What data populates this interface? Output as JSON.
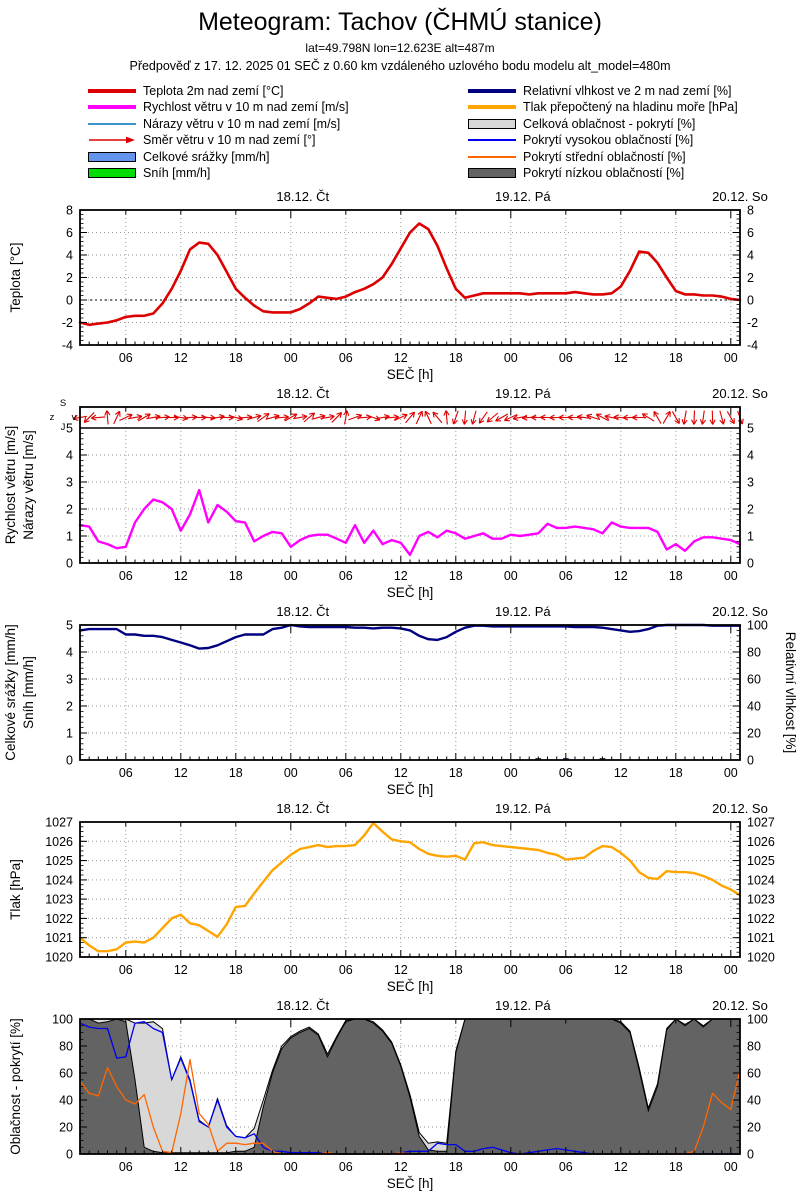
{
  "header": {
    "title": "Meteogram: Tachov (ČHMÚ stanice)",
    "coords": "lat=49.798N lon=12.623E alt=487m",
    "forecast_info": "Předpověď z 17. 12. 2025 01 SEČ z 0.60 km vzdáleného uzlového bodu modelu alt_model=480m"
  },
  "legend": {
    "left": [
      {
        "swatch": "line-thick",
        "color": "#dd0000",
        "label": "Teplota 2m nad zemí [°C]"
      },
      {
        "swatch": "line-thick",
        "color": "#ff00ff",
        "label": "Rychlost větru v 10 m nad zemí [m/s]"
      },
      {
        "swatch": "line-thin",
        "color": "#3d95cc",
        "label": "Nárazy větru v 10 m nad zemí [m/s]"
      },
      {
        "swatch": "arrow",
        "color": "#dd0000",
        "label": "Směr větru v 10 m nad zemí [°]"
      },
      {
        "swatch": "box",
        "color": "#6495ed",
        "label": "Celkové srážky [mm/h]"
      },
      {
        "swatch": "box",
        "color": "#00dc00",
        "label": "Sníh [mm/h]"
      }
    ],
    "right": [
      {
        "swatch": "line-thick",
        "color": "#000080",
        "label": "Relativní vlhkost ve 2 m nad zemí [%]"
      },
      {
        "swatch": "line-thick",
        "color": "#ffa500",
        "label": "Tlak přepočtený na hladinu moře [hPa]"
      },
      {
        "swatch": "box",
        "color": "#d8d8d8",
        "label": "Celková oblačnost - pokrytí [%]"
      },
      {
        "swatch": "line-thin",
        "color": "#0000ee",
        "label": "Pokrytí vysokou oblačností [%]"
      },
      {
        "swatch": "line-thin",
        "color": "#ff6600",
        "label": "Pokrytí střední oblačností [%]"
      },
      {
        "swatch": "box",
        "color": "#636363",
        "label": "Pokrytí nízkou oblačností [%]"
      }
    ]
  },
  "chart_data": {
    "type": "line",
    "x_axis": {
      "label": "SEČ [h]",
      "range_hours": [
        1,
        73
      ],
      "minor_step_hours": 1,
      "ticks": [
        6,
        12,
        18,
        24,
        30,
        36,
        42,
        48,
        54,
        60,
        66,
        72
      ],
      "tick_labels": [
        "06",
        "12",
        "18",
        "00",
        "06",
        "12",
        "18",
        "00",
        "06",
        "12",
        "18",
        "00"
      ],
      "day_labels": [
        {
          "pos": 25.3,
          "label": "18.12. Čt"
        },
        {
          "pos": 49.3,
          "label": "19.12. Pá"
        },
        {
          "pos": 73,
          "label": "20.12. So"
        }
      ]
    },
    "series_data": {
      "temperature_c": [
        -2,
        -2.2,
        -2.1,
        -2,
        -1.8,
        -1.5,
        -1.4,
        -1.4,
        -1.2,
        -0.3,
        1,
        2.6,
        4.5,
        5.1,
        5,
        4,
        2.5,
        1,
        0.2,
        -0.5,
        -1,
        -1.1,
        -1.1,
        -1.1,
        -0.8,
        -0.3,
        0.3,
        0.2,
        0.1,
        0.3,
        0.7,
        1,
        1.4,
        2,
        3.2,
        4.6,
        6,
        6.8,
        6.3,
        4.8,
        2.8,
        1,
        0.2,
        0.4,
        0.6,
        0.6,
        0.6,
        0.6,
        0.6,
        0.5,
        0.6,
        0.6,
        0.6,
        0.6,
        0.7,
        0.6,
        0.5,
        0.5,
        0.6,
        1.2,
        2.6,
        4.3,
        4.2,
        3.3,
        2,
        0.8,
        0.5,
        0.5,
        0.4,
        0.4,
        0.3,
        0.1,
        0
      ],
      "wind_speed_ms": [
        1.4,
        1.35,
        0.8,
        0.7,
        0.55,
        0.6,
        1.5,
        2,
        2.35,
        2.25,
        2,
        1.2,
        1.8,
        2.7,
        1.5,
        2.15,
        1.9,
        1.55,
        1.5,
        0.8,
        1,
        1.15,
        1.1,
        0.6,
        0.85,
        1,
        1.05,
        1.05,
        0.9,
        0.75,
        1.4,
        0.75,
        1.2,
        0.7,
        0.85,
        0.75,
        0.3,
        1,
        1.15,
        0.95,
        1.2,
        1.1,
        0.9,
        1,
        1.1,
        0.9,
        0.9,
        1.05,
        1,
        1.05,
        1.1,
        1.45,
        1.3,
        1.3,
        1.35,
        1.3,
        1.25,
        1.1,
        1.5,
        1.35,
        1.3,
        1.3,
        1.3,
        1.15,
        0.5,
        0.7,
        0.45,
        0.8,
        0.95,
        0.95,
        0.9,
        0.85,
        0.7
      ],
      "wind_dir_deg": [
        190,
        225,
        185,
        95,
        65,
        25,
        10,
        30,
        10,
        5,
        0,
        -10,
        5,
        0,
        -5,
        10,
        0,
        -15,
        5,
        15,
        35,
        15,
        5,
        30,
        10,
        40,
        15,
        10,
        45,
        80,
        20,
        5,
        -20,
        10,
        5,
        25,
        50,
        65,
        115,
        130,
        95,
        250,
        265,
        255,
        235,
        220,
        210,
        205,
        190,
        185,
        180,
        178,
        182,
        180,
        178,
        172,
        162,
        152,
        168,
        176,
        182,
        180,
        148,
        120,
        60,
        300,
        260,
        268,
        262,
        272,
        285,
        300,
        290
      ],
      "humidity_pct": [
        96,
        97,
        97,
        97,
        97,
        93,
        93,
        92,
        92,
        91,
        89,
        87,
        85,
        82.5,
        83,
        85,
        88,
        91,
        93,
        93,
        93,
        97,
        98,
        100,
        99,
        98.5,
        98.5,
        98.5,
        98.5,
        98.5,
        98,
        98,
        97.5,
        98,
        98,
        97.5,
        96,
        92,
        89.5,
        89,
        91,
        95,
        98,
        99.5,
        99.5,
        99,
        99,
        99,
        99,
        99,
        99,
        99,
        99,
        99,
        98.5,
        98.5,
        98.5,
        98,
        97,
        96,
        95,
        95.5,
        97,
        99.5,
        100,
        100,
        100,
        100,
        100,
        99.5,
        99.5,
        99.5,
        99.5
      ],
      "pressure_hpa": [
        1021,
        1020.6,
        1020.3,
        1020.3,
        1020.4,
        1020.75,
        1020.8,
        1020.75,
        1021,
        1021.5,
        1022,
        1022.2,
        1021.75,
        1021.65,
        1021.35,
        1021.05,
        1021.7,
        1022.6,
        1022.65,
        1023.3,
        1023.9,
        1024.5,
        1024.9,
        1025.3,
        1025.6,
        1025.7,
        1025.8,
        1025.7,
        1025.75,
        1025.75,
        1025.8,
        1026.3,
        1026.95,
        1026.5,
        1026.1,
        1026,
        1025.95,
        1025.6,
        1025.35,
        1025.25,
        1025.2,
        1025.25,
        1025.05,
        1025.9,
        1025.95,
        1025.8,
        1025.75,
        1025.7,
        1025.65,
        1025.6,
        1025.55,
        1025.4,
        1025.3,
        1025.05,
        1025.1,
        1025.15,
        1025.5,
        1025.75,
        1025.7,
        1025.4,
        1025,
        1024.4,
        1024.1,
        1024.05,
        1024.45,
        1024.4,
        1024.4,
        1024.35,
        1024.2,
        1024,
        1023.7,
        1023.5,
        1023.2
      ],
      "cloud_total_pct": [
        100,
        100,
        100,
        100,
        100,
        100,
        97,
        97,
        98,
        93,
        55,
        72,
        55,
        25,
        20,
        41,
        21,
        13,
        12,
        19,
        40,
        62,
        80,
        87,
        91,
        94,
        89,
        74,
        87,
        99,
        100,
        100,
        98,
        92,
        83,
        66,
        44,
        16,
        8,
        9,
        8,
        76,
        100,
        100,
        100,
        100,
        100,
        100,
        100,
        100,
        100,
        100,
        100,
        100,
        100,
        100,
        100,
        100,
        100,
        98,
        91,
        64,
        34,
        52,
        93,
        100,
        96,
        100,
        95,
        100,
        100,
        100,
        100
      ],
      "cloud_low_pct": [
        100,
        100,
        97,
        98,
        100,
        98,
        55,
        5,
        2,
        1,
        1,
        1,
        1,
        1,
        1,
        1,
        1,
        2,
        2,
        5,
        35,
        60,
        78,
        86,
        90,
        93,
        88,
        72,
        86,
        98,
        100,
        100,
        97,
        91,
        82,
        65,
        42,
        13,
        3,
        2,
        2,
        75,
        100,
        100,
        100,
        100,
        100,
        100,
        100,
        100,
        100,
        100,
        100,
        100,
        100,
        100,
        100,
        100,
        100,
        97,
        90,
        62,
        32,
        50,
        92,
        100,
        95,
        100,
        94,
        100,
        100,
        100,
        100
      ],
      "cloud_high_pct": [
        97,
        94,
        93,
        93,
        71,
        72,
        97,
        98,
        93,
        90,
        55,
        71,
        54,
        24,
        20,
        40,
        20,
        13,
        12,
        15,
        5,
        2,
        2,
        1,
        1,
        1,
        1,
        0,
        0,
        0,
        0,
        0,
        0,
        0,
        0,
        1,
        2,
        2,
        2,
        8,
        7,
        7,
        2,
        2,
        4,
        5,
        3,
        1,
        0,
        1,
        2,
        3,
        4,
        3,
        2,
        1,
        0,
        0,
        0,
        0,
        0,
        0,
        0,
        0,
        0,
        0,
        0,
        0,
        0,
        0,
        0,
        0,
        0
      ],
      "cloud_mid_pct": [
        54,
        45,
        43,
        64,
        50,
        40,
        37,
        44,
        20,
        2,
        1,
        30,
        70,
        30,
        22,
        2,
        8,
        8,
        7,
        8,
        8,
        2,
        0,
        0,
        0,
        0,
        0,
        1,
        0,
        0,
        0,
        0,
        0,
        0,
        0,
        1,
        0,
        0,
        0,
        0,
        0,
        0,
        0,
        0,
        0,
        0,
        0,
        0,
        0,
        0,
        0,
        0,
        0,
        0,
        0,
        0,
        0,
        0,
        0,
        0,
        0,
        0,
        0,
        0,
        0,
        0,
        0,
        2,
        20,
        45,
        38,
        33,
        62
      ]
    },
    "panels": [
      {
        "id": "teplota",
        "ylabels_left": [
          "Teplota [°C]"
        ],
        "ylim": [
          -4,
          8
        ],
        "yticks": [
          -4,
          -2,
          0,
          2,
          4,
          6,
          8
        ],
        "yminor": 0.4,
        "right_tick_labels": true,
        "zero_line": 0,
        "series": [
          {
            "key": "temperature_c",
            "type": "line",
            "color": "#dd0000",
            "width": 2.6
          }
        ]
      },
      {
        "id": "vitr",
        "ylabels_left": [
          "Rychlost větru [m/s]",
          "Nárazy větru [m/s]"
        ],
        "ylim": [
          0,
          5
        ],
        "yticks": [
          0,
          1,
          2,
          3,
          4,
          5
        ],
        "yminor": 0.2,
        "right_tick_labels": true,
        "arrow_strip": {
          "key": "wind_dir_deg",
          "color": "#dd0000"
        },
        "compass": {
          "top": "S",
          "left": "z",
          "bottom": "J",
          "right": "v"
        },
        "series": [
          {
            "key": "wind_speed_ms",
            "type": "line",
            "color": "#ff00ff",
            "width": 2.4
          }
        ]
      },
      {
        "id": "srazky-vlhkost",
        "ylabels_left": [
          "Celkové srážky [mm/h]",
          "Sníh [mm/h]"
        ],
        "ylim": [
          0,
          5
        ],
        "yticks": [
          0,
          1,
          2,
          3,
          4,
          5
        ],
        "yminor": 0.2,
        "right_axis": {
          "label": "Relativní vlhkost [%]",
          "lim": [
            0,
            100
          ],
          "ticks": [
            0,
            20,
            40,
            60,
            80,
            100
          ],
          "minor": 4
        },
        "bars": [
          {
            "x": 51,
            "value": 0.06
          },
          {
            "x": 54,
            "value": 0.05
          },
          {
            "x": 58,
            "value": 0.05
          }
        ],
        "bar_color": "#6495ed",
        "series": [
          {
            "key": "humidity_pct",
            "type": "line",
            "color": "#000080",
            "width": 2.4,
            "lim": [
              0,
              100
            ]
          }
        ]
      },
      {
        "id": "tlak",
        "ylabels_left": [
          "Tlak [hPa]"
        ],
        "ylim": [
          1020,
          1027
        ],
        "yticks": [
          1020,
          1021,
          1022,
          1023,
          1024,
          1025,
          1026,
          1027
        ],
        "yminor": 0.25,
        "right_tick_labels": true,
        "series": [
          {
            "key": "pressure_hpa",
            "type": "line",
            "color": "#ffa500",
            "width": 2.4
          }
        ]
      },
      {
        "id": "oblacnost",
        "ylabels_left": [
          "Oblačnost - pokrytí [%]"
        ],
        "ylim": [
          0,
          100
        ],
        "yticks": [
          0,
          20,
          40,
          60,
          80,
          100
        ],
        "yminor": 5,
        "right_tick_labels": true,
        "series": [
          {
            "key": "cloud_total_pct",
            "type": "area",
            "color": "#d8d8d8",
            "stroke": "#000000",
            "width": 1
          },
          {
            "key": "cloud_low_pct",
            "type": "area",
            "color": "#636363",
            "stroke": "#000000",
            "width": 1
          },
          {
            "key": "cloud_high_pct",
            "type": "line",
            "color": "#0000ee",
            "width": 1.3
          },
          {
            "key": "cloud_mid_pct",
            "type": "line",
            "color": "#ff6600",
            "width": 1.3
          }
        ]
      }
    ]
  }
}
